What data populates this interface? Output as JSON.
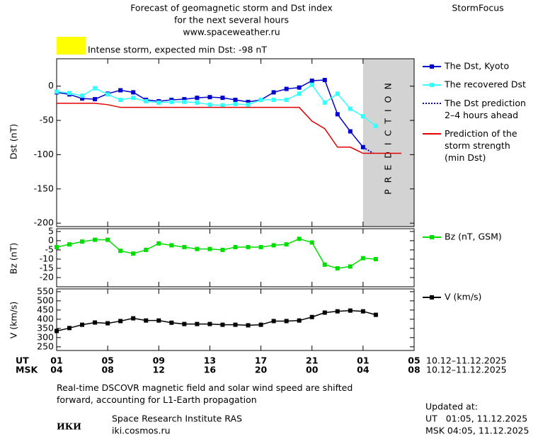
{
  "header": {
    "title_lines": [
      "Forecast of geomagnetic storm and Dst index",
      "for the next several hours",
      "www.spaceweather.ru"
    ],
    "brand": "StormFocus",
    "storm_label": "Intense storm, expected min Dst: -98 nT",
    "storm_color": "#ffff00"
  },
  "chart_data": [
    {
      "type": "line",
      "ylabel": "Dst (nT)",
      "xlim": [
        0,
        28
      ],
      "ylim": [
        -205,
        40
      ],
      "yticks": [
        0,
        -50,
        -100,
        -150,
        -200
      ],
      "shade": {
        "from": 24,
        "to": 28,
        "label": "PREDICTION",
        "color": "#d3d3d3"
      },
      "series": [
        {
          "name": "The Dst, Kyoto",
          "color": "#0000cc",
          "markers": true,
          "x": [
            0,
            1,
            2,
            3,
            4,
            5,
            6,
            7,
            8,
            9,
            10,
            11,
            12,
            13,
            14,
            15,
            16,
            17,
            18,
            19,
            20,
            21,
            22,
            23,
            24
          ],
          "values": [
            -9,
            -12,
            -18,
            -19,
            -11,
            -6,
            -9,
            -20,
            -22,
            -20,
            -19,
            -17,
            -16,
            -17,
            -20,
            -23,
            -20,
            -9,
            -4,
            -2,
            8,
            9,
            -41,
            -66,
            -89
          ]
        },
        {
          "name": "The recovered Dst",
          "color": "#33ffff",
          "markers": true,
          "x": [
            0,
            1,
            2,
            3,
            4,
            5,
            6,
            7,
            8,
            9,
            10,
            11,
            12,
            13,
            14,
            15,
            16,
            17,
            18,
            19,
            20,
            21,
            22,
            23,
            24,
            25
          ],
          "values": [
            -8,
            -10,
            -14,
            -3,
            -12,
            -20,
            -17,
            -22,
            -24,
            -23,
            -23,
            -24,
            -27,
            -28,
            -26,
            -27,
            -20,
            -20,
            -20,
            -11,
            2,
            -24,
            -11,
            -33,
            -44,
            -58
          ]
        },
        {
          "name": "The Dst prediction\n2–4 hours ahead",
          "color": "#0000cc",
          "style": "dotted",
          "x": [
            24,
            24.8
          ],
          "values": [
            -89,
            -98
          ]
        },
        {
          "name": "Prediction of the\nstorm strength\n(min Dst)",
          "color": "#e00000",
          "x": [
            0,
            1,
            2,
            3,
            4,
            5,
            6,
            7,
            8,
            9,
            10,
            11,
            12,
            13,
            14,
            15,
            16,
            17,
            18,
            19,
            20,
            21,
            22,
            23,
            24,
            25,
            26,
            27
          ],
          "values": [
            -25,
            -25,
            -25,
            -25,
            -27,
            -31,
            -31,
            -31,
            -31,
            -31,
            -31,
            -31,
            -31,
            -31,
            -31,
            -31,
            -31,
            -31,
            -31,
            -31,
            -51,
            -62,
            -89,
            -89,
            -98,
            -98,
            -98,
            -98
          ]
        }
      ]
    },
    {
      "type": "line",
      "ylabel": "Bz (nT)",
      "xlim": [
        0,
        28
      ],
      "ylim": [
        -25,
        6.5
      ],
      "yticks": [
        5,
        0,
        -5,
        -10,
        -15,
        -20
      ],
      "series": [
        {
          "name": "Bz (nT, GSM)",
          "color": "#00dd00",
          "markers": true,
          "x": [
            0,
            1,
            2,
            3,
            4,
            5,
            6,
            7,
            8,
            9,
            10,
            11,
            12,
            13,
            14,
            15,
            16,
            17,
            18,
            19,
            20,
            21,
            22,
            23,
            24,
            25
          ],
          "values": [
            -3.5,
            -2,
            -0.5,
            0.5,
            0.5,
            -5.5,
            -7,
            -5,
            -1.5,
            -2.5,
            -3.5,
            -4.5,
            -4.5,
            -5,
            -3.5,
            -3.5,
            -3.5,
            -2.5,
            -2,
            1,
            -1,
            -13,
            -15,
            -14,
            -9.5,
            -10
          ]
        }
      ]
    },
    {
      "type": "line",
      "ylabel": "V (km/s)",
      "xlim": [
        0,
        28
      ],
      "ylim": [
        230,
        565
      ],
      "yticks": [
        550,
        500,
        450,
        400,
        350,
        300,
        250
      ],
      "xticks": [
        {
          "value": 0,
          "label": "01"
        },
        {
          "value": 4,
          "label": "05"
        },
        {
          "value": 8,
          "label": "09"
        },
        {
          "value": 12,
          "label": "13"
        },
        {
          "value": 16,
          "label": "17"
        },
        {
          "value": 20,
          "label": "21"
        },
        {
          "value": 24,
          "label": "01"
        },
        {
          "value": 28,
          "label": "05"
        }
      ],
      "msk_tick_labels": [
        "04",
        "08",
        "12",
        "16",
        "20",
        "00",
        "04",
        "08"
      ],
      "ut_label": "UT",
      "msk_label": "MSK",
      "ut_range": "10.12–11.12.2025",
      "msk_range": "10.12–11.12.2025",
      "series": [
        {
          "name": "V (km/s)",
          "color": "#000000",
          "markers": true,
          "x": [
            0,
            1,
            2,
            3,
            4,
            5,
            6,
            7,
            8,
            9,
            10,
            11,
            12,
            13,
            14,
            15,
            16,
            17,
            18,
            19,
            20,
            21,
            22,
            23,
            24,
            25
          ],
          "values": [
            336,
            352,
            370,
            382,
            378,
            390,
            405,
            393,
            393,
            381,
            374,
            374,
            374,
            370,
            370,
            367,
            370,
            390,
            390,
            393,
            412,
            436,
            443,
            447,
            443,
            424
          ]
        }
      ]
    }
  ],
  "footer": {
    "note": "Real-time DSCOVR magnetic field and solar wind speed are shifted\nforward, accounting for L1-Earth propagation",
    "logo": "ИКИ",
    "institute": "Space Research Institute RAS",
    "site": "iki.cosmos.ru",
    "updated": "Updated at:",
    "updated_ut": "UT   01:05, 11.12.2025",
    "updated_msk": "MSK 04:05, 11.12.2025"
  }
}
